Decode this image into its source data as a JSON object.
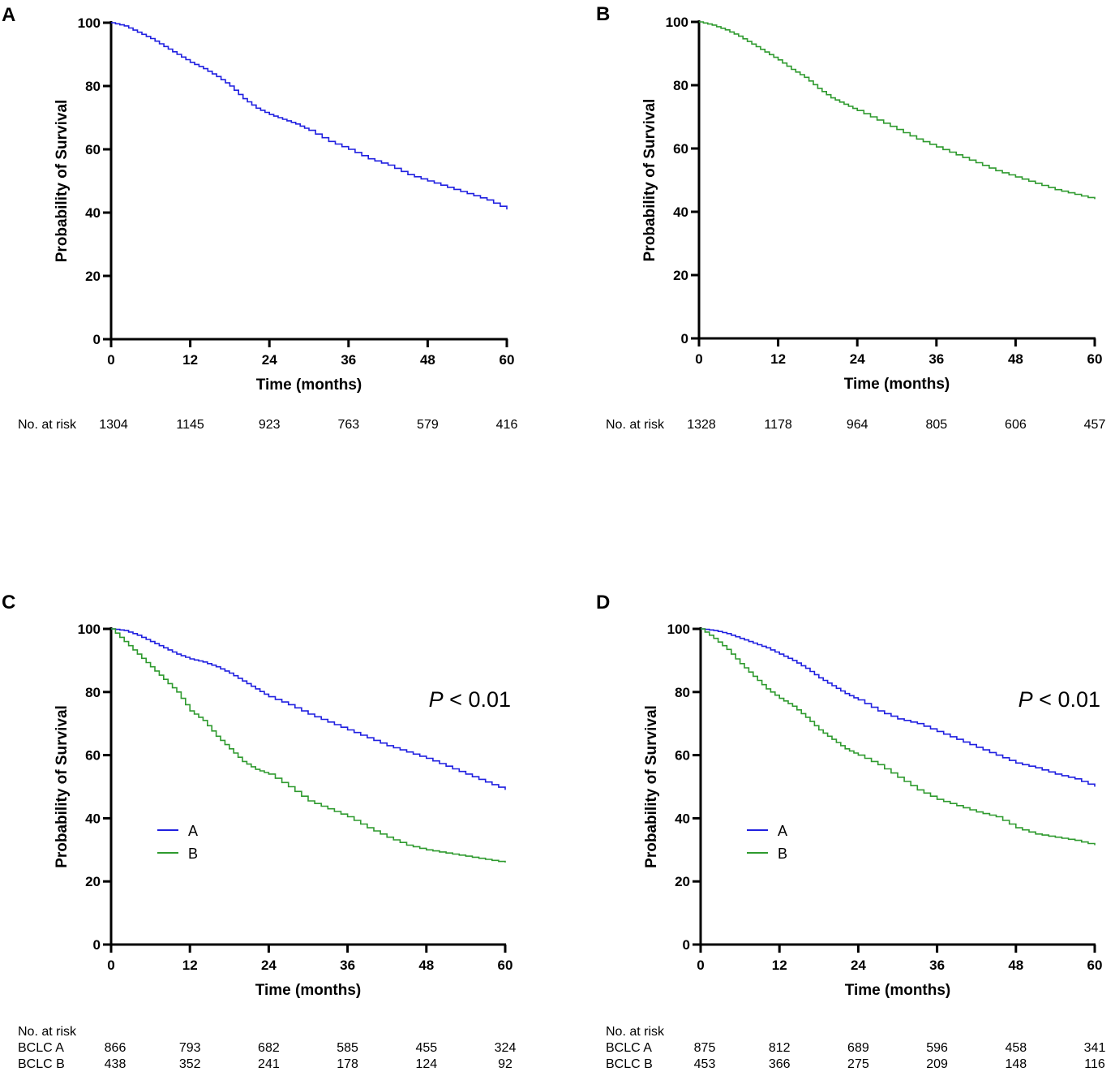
{
  "chart_data": [
    {
      "panel_label": "A",
      "type": "line",
      "xlabel": "Time (months)",
      "ylabel": "Probability of Survival",
      "xlim": [
        0,
        60
      ],
      "ylim": [
        0,
        100
      ],
      "xticks": [
        0,
        12,
        24,
        36,
        48,
        60
      ],
      "yticks": [
        0,
        20,
        40,
        60,
        80,
        100
      ],
      "series": [
        {
          "name": "",
          "color": "#1f1fe0",
          "x": [
            0,
            2,
            4,
            6,
            8,
            10,
            12,
            14,
            16,
            18,
            20,
            22,
            24,
            26,
            28,
            30,
            33,
            36,
            39,
            42,
            45,
            48,
            51,
            54,
            57,
            60
          ],
          "y": [
            100,
            99,
            97,
            95,
            92.5,
            90,
            87.5,
            85.5,
            83,
            80,
            76,
            73,
            71,
            69.5,
            68,
            66,
            62.5,
            60,
            57,
            55,
            52,
            50,
            48,
            46,
            44,
            41
          ]
        }
      ],
      "risk_table": {
        "header": "No. at risk",
        "rows": [
          {
            "label": "No. at risk",
            "values": [
              "1304",
              "1145",
              "923",
              "763",
              "579",
              "416"
            ]
          }
        ]
      }
    },
    {
      "panel_label": "B",
      "type": "line",
      "xlabel": "Time (months)",
      "ylabel": "Probability of Survival",
      "xlim": [
        0,
        60
      ],
      "ylim": [
        0,
        100
      ],
      "xticks": [
        0,
        12,
        24,
        36,
        48,
        60
      ],
      "yticks": [
        0,
        20,
        40,
        60,
        80,
        100
      ],
      "series": [
        {
          "name": "",
          "color": "#2e9a2e",
          "x": [
            0,
            2,
            4,
            6,
            8,
            10,
            12,
            14,
            16,
            18,
            20,
            22,
            24,
            27,
            30,
            33,
            36,
            39,
            42,
            45,
            48,
            51,
            54,
            57,
            60
          ],
          "y": [
            100,
            99,
            97.5,
            95.5,
            93,
            90.5,
            88,
            85,
            82.5,
            79,
            76,
            74,
            72,
            69,
            66,
            63,
            60.5,
            58,
            55.5,
            53,
            51,
            49,
            47,
            45.5,
            44
          ]
        }
      ],
      "risk_table": {
        "header": "No. at risk",
        "rows": [
          {
            "label": "No. at risk",
            "values": [
              "1328",
              "1178",
              "964",
              "805",
              "606",
              "457"
            ]
          }
        ]
      }
    },
    {
      "panel_label": "C",
      "type": "line",
      "xlabel": "Time (months)",
      "ylabel": "Probability of Survival",
      "xlim": [
        0,
        60
      ],
      "ylim": [
        0,
        100
      ],
      "xticks": [
        0,
        12,
        24,
        36,
        48,
        60
      ],
      "yticks": [
        0,
        20,
        40,
        60,
        80,
        100
      ],
      "annotation": {
        "italic": "P",
        "rest": " < 0.01"
      },
      "legend": [
        {
          "label": "A",
          "color": "#1f1fe0"
        },
        {
          "label": "B",
          "color": "#2e9a2e"
        }
      ],
      "series": [
        {
          "name": "A",
          "color": "#1f1fe0",
          "x": [
            0,
            2,
            4,
            6,
            8,
            10,
            12,
            14,
            16,
            18,
            20,
            22,
            24,
            27,
            30,
            33,
            36,
            39,
            42,
            45,
            48,
            51,
            54,
            57,
            60
          ],
          "y": [
            100,
            99.5,
            98,
            96,
            94,
            92,
            90.5,
            89.5,
            88,
            86,
            83.5,
            81,
            78.5,
            76,
            73,
            70.5,
            68,
            65.5,
            63,
            61,
            59,
            56.5,
            54,
            51.5,
            49
          ]
        },
        {
          "name": "B",
          "color": "#2e9a2e",
          "x": [
            0,
            2,
            4,
            6,
            8,
            10,
            12,
            14,
            16,
            18,
            20,
            22,
            24,
            27,
            30,
            33,
            36,
            39,
            42,
            45,
            48,
            51,
            54,
            57,
            60
          ],
          "y": [
            100,
            96,
            92,
            88,
            84,
            80,
            74,
            71,
            66,
            62,
            58,
            55.5,
            54,
            50,
            45.5,
            43,
            40.5,
            37,
            34,
            31.5,
            30,
            29,
            28,
            27,
            26
          ]
        }
      ],
      "risk_table": {
        "header": "No. at risk",
        "rows": [
          {
            "label": "BCLC A",
            "values": [
              "866",
              "793",
              "682",
              "585",
              "455",
              "324"
            ]
          },
          {
            "label": "BCLC B",
            "values": [
              "438",
              "352",
              "241",
              "178",
              "124",
              "92"
            ]
          }
        ]
      }
    },
    {
      "panel_label": "D",
      "type": "line",
      "xlabel": "Time (months)",
      "ylabel": "Probability of Survival",
      "xlim": [
        0,
        60
      ],
      "ylim": [
        0,
        100
      ],
      "xticks": [
        0,
        12,
        24,
        36,
        48,
        60
      ],
      "yticks": [
        0,
        20,
        40,
        60,
        80,
        100
      ],
      "annotation": {
        "italic": "P",
        "rest": " < 0.01"
      },
      "legend": [
        {
          "label": "A",
          "color": "#1f1fe0"
        },
        {
          "label": "B",
          "color": "#2e9a2e"
        }
      ],
      "series": [
        {
          "name": "A",
          "color": "#1f1fe0",
          "x": [
            0,
            2,
            4,
            6,
            8,
            10,
            12,
            14,
            16,
            18,
            20,
            22,
            24,
            27,
            30,
            33,
            36,
            39,
            42,
            45,
            48,
            51,
            54,
            57,
            60
          ],
          "y": [
            100,
            99.5,
            98.5,
            97,
            95.5,
            94,
            92,
            90,
            87.5,
            84.5,
            82,
            79.5,
            77.5,
            74,
            71.5,
            70,
            67.5,
            65,
            62.5,
            60,
            57.5,
            56,
            54,
            52.5,
            50
          ]
        },
        {
          "name": "B",
          "color": "#2e9a2e",
          "x": [
            0,
            2,
            4,
            6,
            8,
            10,
            12,
            14,
            16,
            18,
            20,
            22,
            24,
            27,
            30,
            33,
            36,
            39,
            42,
            45,
            48,
            51,
            54,
            57,
            60
          ],
          "y": [
            100,
            97,
            93.5,
            89,
            85,
            81,
            78,
            75.5,
            72,
            68,
            65,
            62,
            60,
            57,
            53,
            49,
            46,
            44,
            42,
            40.5,
            37,
            35,
            34,
            33,
            31.5
          ]
        }
      ],
      "risk_table": {
        "header": "No. at risk",
        "rows": [
          {
            "label": "BCLC A",
            "values": [
              "875",
              "812",
              "689",
              "596",
              "458",
              "341"
            ]
          },
          {
            "label": "BCLC B",
            "values": [
              "453",
              "366",
              "275",
              "209",
              "148",
              "116"
            ]
          }
        ]
      }
    }
  ]
}
